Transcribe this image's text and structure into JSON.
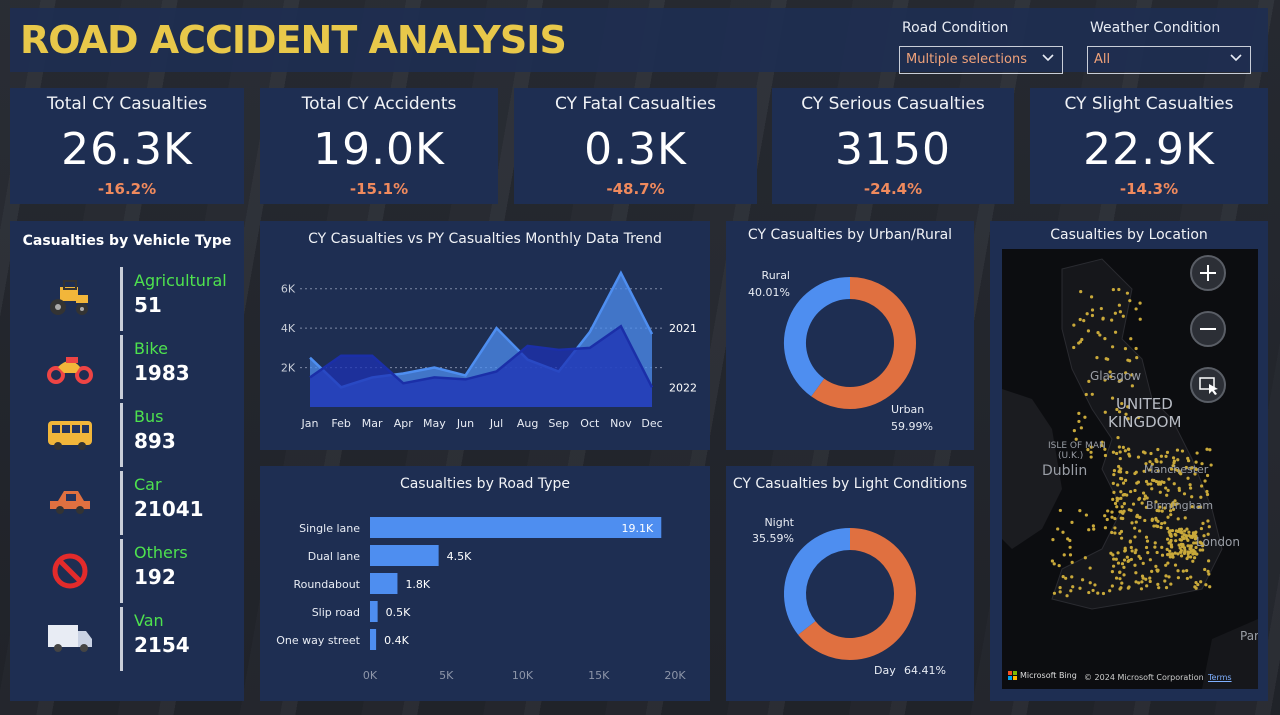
{
  "app": {
    "title": "ROAD ACCIDENT ANALYSIS"
  },
  "filters": {
    "road_condition": {
      "label": "Road Condition",
      "value": "Multiple selections"
    },
    "weather_condition": {
      "label": "Weather Condition",
      "value": "All"
    }
  },
  "kpis": [
    {
      "title": "Total CY Casualties",
      "value": "26.3K",
      "delta": "-16.2%"
    },
    {
      "title": "Total CY Accidents",
      "value": "19.0K",
      "delta": "-15.1%"
    },
    {
      "title": "CY Fatal Casualties",
      "value": "0.3K",
      "delta": "-48.7%"
    },
    {
      "title": "CY Serious Casualties",
      "value": "3150",
      "delta": "-24.4%"
    },
    {
      "title": "CY Slight Casualties",
      "value": "22.9K",
      "delta": "-14.3%"
    }
  ],
  "vehicle_panel": {
    "title": "Casualties by Vehicle Type",
    "items": [
      {
        "name": "Agricultural",
        "value": "51",
        "icon": "tractor-icon"
      },
      {
        "name": "Bike",
        "value": "1983",
        "icon": "motorbike-icon"
      },
      {
        "name": "Bus",
        "value": "893",
        "icon": "bus-icon"
      },
      {
        "name": "Car",
        "value": "21041",
        "icon": "car-icon"
      },
      {
        "name": "Others",
        "value": "192",
        "icon": "prohibited-icon"
      },
      {
        "name": "Van",
        "value": "2154",
        "icon": "van-icon"
      }
    ]
  },
  "colors": {
    "accent_orange": "#e07040",
    "accent_blue": "#4e8ef0",
    "dark_blue": "#1b2fa8",
    "title_yellow": "#e8c84a",
    "delta": "#f08a5d"
  },
  "chart_data": [
    {
      "type": "area",
      "title": "CY Casualties vs PY Casualties Monthly Data Trend",
      "categories": [
        "Jan",
        "Feb",
        "Mar",
        "Apr",
        "May",
        "Jun",
        "Jul",
        "Aug",
        "Sep",
        "Oct",
        "Nov",
        "Dec"
      ],
      "series": [
        {
          "name": "2021",
          "values": [
            2500,
            1000,
            1500,
            1700,
            2000,
            1600,
            4000,
            2400,
            1800,
            3800,
            6800,
            3700
          ]
        },
        {
          "name": "2022",
          "values": [
            1500,
            2600,
            2600,
            1200,
            1500,
            1400,
            1800,
            3100,
            2900,
            3000,
            4100,
            1000
          ]
        }
      ],
      "yticks": [
        "2K",
        "4K",
        "6K"
      ],
      "ylim": [
        0,
        7000
      ],
      "grid": true
    },
    {
      "type": "pie",
      "title": "CY Casualties by Urban/Rural",
      "slices": [
        {
          "name": "Rural",
          "label": "40.01%",
          "value": 40.01,
          "color": "#4e8ef0"
        },
        {
          "name": "Urban",
          "label": "59.99%",
          "value": 59.99,
          "color": "#e07040"
        }
      ]
    },
    {
      "type": "bar",
      "title": "Casualties by Road Type",
      "categories": [
        "Single lane",
        "Dual lane",
        "Roundabout",
        "Slip road",
        "One way street"
      ],
      "values": [
        19100,
        4500,
        1800,
        500,
        400
      ],
      "labels": [
        "19.1K",
        "4.5K",
        "1.8K",
        "0.5K",
        "0.4K"
      ],
      "xticks": [
        "0K",
        "5K",
        "10K",
        "15K",
        "20K"
      ],
      "xlim": [
        0,
        20000
      ]
    },
    {
      "type": "pie",
      "title": "CY Casualties by Light Conditions",
      "slices": [
        {
          "name": "Night",
          "label": "35.59%",
          "value": 35.59,
          "color": "#4e8ef0"
        },
        {
          "name": "Day",
          "label": "64.41%",
          "value": 64.41,
          "color": "#e07040"
        }
      ]
    }
  ],
  "map": {
    "title": "Casualties by Location",
    "labels": {
      "country": "UNITED",
      "country2": "KINGDOM",
      "dublin": "Dublin",
      "glasgow": "Glasgow",
      "isle": "ISLE OF MAN",
      "isle2": "(U.K.)",
      "manchester": "Manchester",
      "birmingham": "Birmingham",
      "london": "London",
      "paris": "Par"
    },
    "footer": {
      "brand": "Microsoft Bing",
      "copyright": "© 2024 Microsoft Corporation",
      "terms": "Terms"
    }
  }
}
